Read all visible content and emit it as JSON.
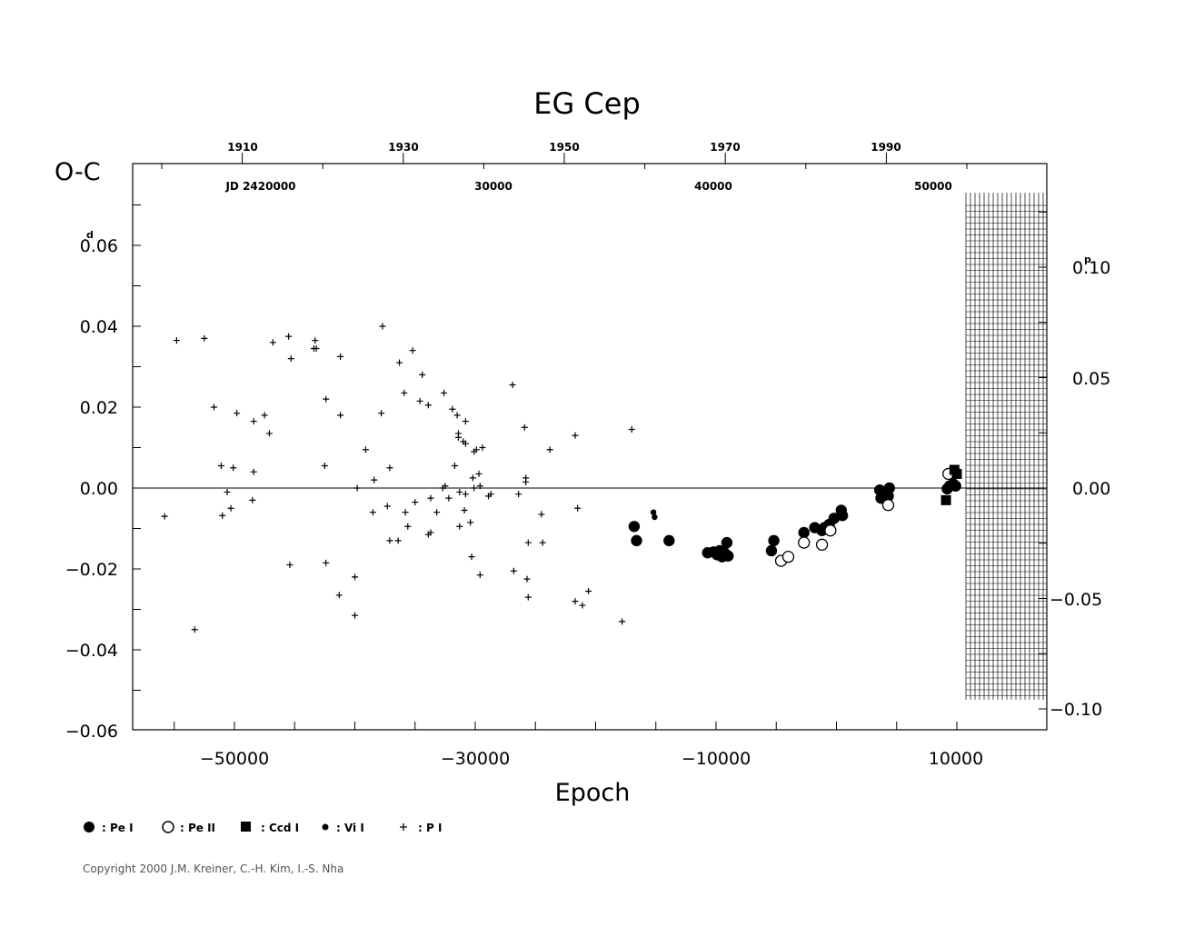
{
  "chart_data": {
    "type": "scatter",
    "title": "EG Cep",
    "ylabel": "O-C",
    "xlabel": "Epoch",
    "x_ticks": [
      "−50000",
      "−30000",
      "−10000",
      "10000"
    ],
    "x_tick_values": [
      -50000,
      -30000,
      -10000,
      10000
    ],
    "y_ticks": [
      "0.06",
      "0.04",
      "0.02",
      "0.00",
      "−0.02",
      "−0.04",
      "−0.06"
    ],
    "y_tick_values": [
      0.06,
      0.04,
      0.02,
      0.0,
      -0.02,
      -0.04,
      -0.06
    ],
    "y_unit": "d",
    "y2_ticks": [
      "0.10",
      "0.05",
      "0.00",
      "−0.05",
      "−0.10"
    ],
    "y2_tick_values": [
      0.1,
      0.05,
      0.0,
      -0.05,
      -0.1
    ],
    "y2_unit": "p",
    "year_ticks": [
      "1910",
      "1930",
      "1950",
      "1970",
      "1990"
    ],
    "jd_label": "JD 2420000",
    "jd_ticks": [
      "30000",
      "40000",
      "50000"
    ],
    "xlim": [
      -58000,
      14000
    ],
    "ylim": [
      -0.06,
      0.08
    ],
    "grid": false,
    "legend_position": "bottom-left",
    "legend": [
      {
        "marker": "filled-circle",
        "label": ": Pe I"
      },
      {
        "marker": "open-circle",
        "label": ": Pe II"
      },
      {
        "marker": "filled-square",
        "label": ": Ccd I"
      },
      {
        "marker": "small-dot",
        "label": ": Vi I"
      },
      {
        "marker": "plus",
        "label": ": P I"
      }
    ],
    "series": [
      {
        "name": "Pe I",
        "marker": "filled-circle",
        "points": [
          [
            -16800,
            -0.0095
          ],
          [
            -16600,
            -0.013
          ],
          [
            -13900,
            -0.013
          ],
          [
            -10700,
            -0.016
          ],
          [
            -10200,
            -0.0158
          ],
          [
            -9900,
            -0.0165
          ],
          [
            -9700,
            -0.0155
          ],
          [
            -9500,
            -0.017
          ],
          [
            -9300,
            -0.016
          ],
          [
            -9000,
            -0.0168
          ],
          [
            -9100,
            -0.0135
          ],
          [
            -5400,
            -0.0155
          ],
          [
            -5200,
            -0.013
          ],
          [
            -2700,
            -0.011
          ],
          [
            -1800,
            -0.0098
          ],
          [
            -1200,
            -0.0105
          ],
          [
            -1000,
            -0.0098
          ],
          [
            -600,
            -0.009
          ],
          [
            -200,
            -0.0075
          ],
          [
            400,
            -0.0055
          ],
          [
            500,
            -0.0068
          ],
          [
            3600,
            -0.0005
          ],
          [
            3700,
            -0.0025
          ],
          [
            3900,
            -0.0015
          ],
          [
            4100,
            -0.001
          ],
          [
            4300,
            -0.002
          ],
          [
            4400,
            0.0
          ],
          [
            9200,
            -0.0002
          ],
          [
            9400,
            0.0005
          ],
          [
            9700,
            0.001
          ],
          [
            9900,
            0.0005
          ]
        ]
      },
      {
        "name": "Pe II",
        "marker": "open-circle",
        "points": [
          [
            -4600,
            -0.018
          ],
          [
            -4000,
            -0.017
          ],
          [
            -2700,
            -0.0135
          ],
          [
            -1200,
            -0.014
          ],
          [
            -500,
            -0.0105
          ],
          [
            4300,
            -0.0042
          ],
          [
            9300,
            0.0035
          ]
        ]
      },
      {
        "name": "Ccd I",
        "marker": "filled-square",
        "points": [
          [
            9100,
            -0.003
          ],
          [
            9800,
            0.0045
          ],
          [
            10000,
            0.0035
          ]
        ]
      },
      {
        "name": "Vi I",
        "marker": "small-dot",
        "points": [
          [
            -15200,
            -0.006
          ],
          [
            -15100,
            -0.0072
          ]
        ]
      },
      {
        "name": "P I",
        "marker": "plus",
        "points": [
          [
            -55800,
            -0.007
          ],
          [
            -54800,
            0.0365
          ],
          [
            -53300,
            -0.035
          ],
          [
            -52500,
            0.037
          ],
          [
            -51700,
            0.02
          ],
          [
            -51100,
            0.0055
          ],
          [
            -51000,
            -0.0068
          ],
          [
            -50600,
            -0.001
          ],
          [
            -50300,
            -0.005
          ],
          [
            -50100,
            0.005
          ],
          [
            -49800,
            0.0185
          ],
          [
            -48500,
            -0.003
          ],
          [
            -48400,
            0.004
          ],
          [
            -48400,
            0.0165
          ],
          [
            -47500,
            0.018
          ],
          [
            -47100,
            0.0135
          ],
          [
            -46800,
            0.036
          ],
          [
            -45500,
            0.0375
          ],
          [
            -45300,
            0.032
          ],
          [
            -45400,
            -0.019
          ],
          [
            -43400,
            0.0345
          ],
          [
            -43300,
            0.0365
          ],
          [
            -43200,
            0.0345
          ],
          [
            -42400,
            0.022
          ],
          [
            -42500,
            0.0055
          ],
          [
            -42400,
            -0.0185
          ],
          [
            -41300,
            -0.0265
          ],
          [
            -41200,
            0.0325
          ],
          [
            -41200,
            0.018
          ],
          [
            -40000,
            -0.022
          ],
          [
            -40000,
            -0.0315
          ],
          [
            -39800,
            0.0
          ],
          [
            -39100,
            0.0095
          ],
          [
            -38500,
            -0.006
          ],
          [
            -38400,
            0.002
          ],
          [
            -37800,
            0.0185
          ],
          [
            -37700,
            0.04
          ],
          [
            -37300,
            -0.0045
          ],
          [
            -37100,
            -0.013
          ],
          [
            -37100,
            0.005
          ],
          [
            -36400,
            -0.013
          ],
          [
            -36300,
            0.031
          ],
          [
            -35900,
            0.0235
          ],
          [
            -35800,
            -0.006
          ],
          [
            -35600,
            -0.0095
          ],
          [
            -35200,
            0.034
          ],
          [
            -35000,
            -0.0035
          ],
          [
            -34600,
            0.0215
          ],
          [
            -34400,
            0.028
          ],
          [
            -33900,
            -0.0115
          ],
          [
            -33900,
            0.0205
          ],
          [
            -33700,
            -0.011
          ],
          [
            -33700,
            -0.0025
          ],
          [
            -33200,
            -0.006
          ],
          [
            -32700,
            0.0
          ],
          [
            -32600,
            0.0235
          ],
          [
            -32500,
            0.0005
          ],
          [
            -32200,
            -0.0025
          ],
          [
            -31900,
            0.0195
          ],
          [
            -31700,
            0.0055
          ],
          [
            -31500,
            0.018
          ],
          [
            -31400,
            0.0125
          ],
          [
            -31400,
            0.0135
          ],
          [
            -31300,
            -0.0095
          ],
          [
            -31300,
            -0.001
          ],
          [
            -31000,
            0.0115
          ],
          [
            -30800,
            -0.0015
          ],
          [
            -30800,
            0.0165
          ],
          [
            -30800,
            0.011
          ],
          [
            -30900,
            -0.0055
          ],
          [
            -30400,
            -0.0085
          ],
          [
            -30300,
            -0.017
          ],
          [
            -30200,
            0.0025
          ],
          [
            -30100,
            0.009
          ],
          [
            -30100,
            0.0
          ],
          [
            -29900,
            0.0095
          ],
          [
            -29700,
            0.0035
          ],
          [
            -29600,
            -0.0215
          ],
          [
            -29600,
            0.0005
          ],
          [
            -29400,
            0.01
          ],
          [
            -28900,
            -0.002
          ],
          [
            -28700,
            -0.0015
          ],
          [
            -26800,
            -0.0205
          ],
          [
            -26900,
            0.0255
          ],
          [
            -26400,
            -0.0015
          ],
          [
            -25900,
            0.015
          ],
          [
            -25800,
            0.0025
          ],
          [
            -25800,
            0.0015
          ],
          [
            -25700,
            -0.0225
          ],
          [
            -25600,
            -0.027
          ],
          [
            -25600,
            -0.0135
          ],
          [
            -24500,
            -0.0065
          ],
          [
            -24400,
            -0.0135
          ],
          [
            -23800,
            0.0095
          ],
          [
            -21700,
            0.013
          ],
          [
            -21500,
            -0.005
          ],
          [
            -21700,
            -0.028
          ],
          [
            -21100,
            -0.029
          ],
          [
            -20600,
            -0.0255
          ],
          [
            -17800,
            -0.033
          ],
          [
            -17000,
            0.0145
          ]
        ]
      }
    ]
  },
  "copyright": "Copyright 2000 J.M. Kreiner, C.-H. Kim, I.-S. Nha"
}
